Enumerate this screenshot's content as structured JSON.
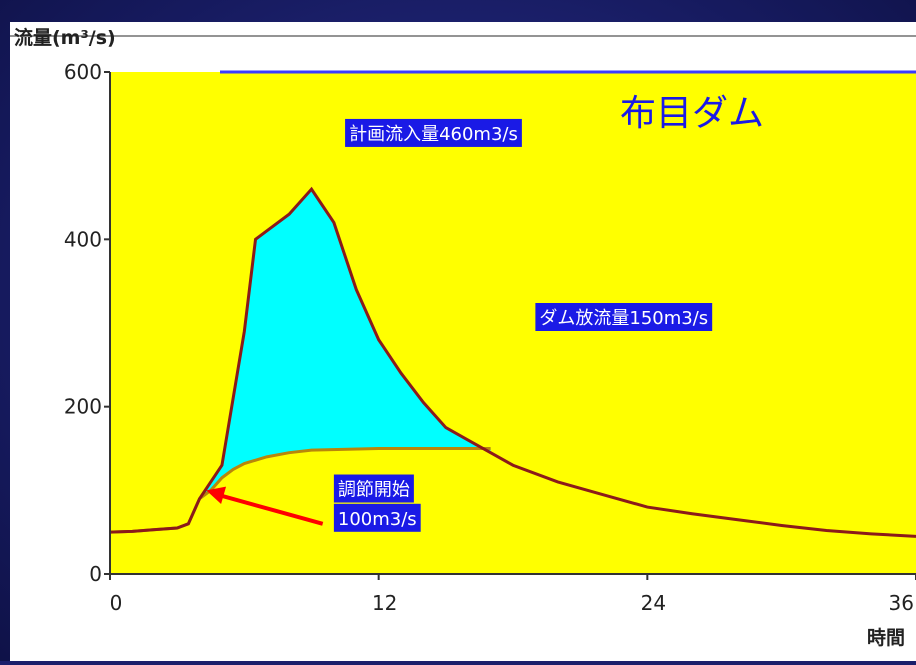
{
  "chart_data": {
    "type": "area",
    "title": "布目ダム",
    "ylabel": "流量(m³/s)",
    "xlabel": "時間",
    "xlim": [
      0,
      36
    ],
    "ylim": [
      0,
      600
    ],
    "x_ticks": [
      0,
      12,
      24,
      36
    ],
    "y_ticks": [
      0,
      200,
      400,
      600
    ],
    "grid": false,
    "colors": {
      "plot_bg": "#ffff00",
      "fill_regulated": "#00ffff",
      "line_inflow": "#8b1a1a",
      "line_outflow": "#b8860b",
      "label_bg": "#1a1ae6",
      "label_text": "#ffffff",
      "arrow": "#ff0000",
      "title_color": "#1a1ae6"
    },
    "series": [
      {
        "x": [
          0,
          1,
          2,
          3,
          3.5,
          4,
          5,
          6,
          6.5,
          7,
          8,
          9,
          9.5,
          10,
          11,
          12,
          13,
          14,
          15,
          16,
          17,
          18,
          20,
          22,
          24,
          26,
          28,
          30,
          32,
          34,
          36
        ],
        "values": [
          50,
          51,
          53,
          55,
          60,
          90,
          130,
          290,
          400,
          410,
          430,
          460,
          440,
          420,
          340,
          280,
          240,
          205,
          175,
          160,
          145,
          130,
          110,
          95,
          80,
          72,
          65,
          58,
          52,
          48,
          45
        ]
      },
      {
        "x": [
          0,
          1,
          2,
          3,
          3.5,
          4,
          4.5,
          5,
          5.5,
          6,
          7,
          8,
          9,
          12,
          15,
          17
        ],
        "values": [
          50,
          51,
          53,
          55,
          60,
          90,
          100,
          115,
          125,
          132,
          140,
          145,
          148,
          150,
          150,
          150
        ]
      }
    ],
    "annotations": [
      {
        "text": "計画流入量460m3/s",
        "x": 10.5,
        "y": 520
      },
      {
        "text": "ダム放流量150m3/s",
        "x": 19,
        "y": 300
      },
      {
        "text": "調節開始",
        "x": 10,
        "y": 95
      },
      {
        "text": "100m3/s",
        "x": 10,
        "y": 60
      }
    ],
    "arrow": {
      "from": [
        9.5,
        60
      ],
      "to": [
        4.3,
        100
      ]
    }
  }
}
